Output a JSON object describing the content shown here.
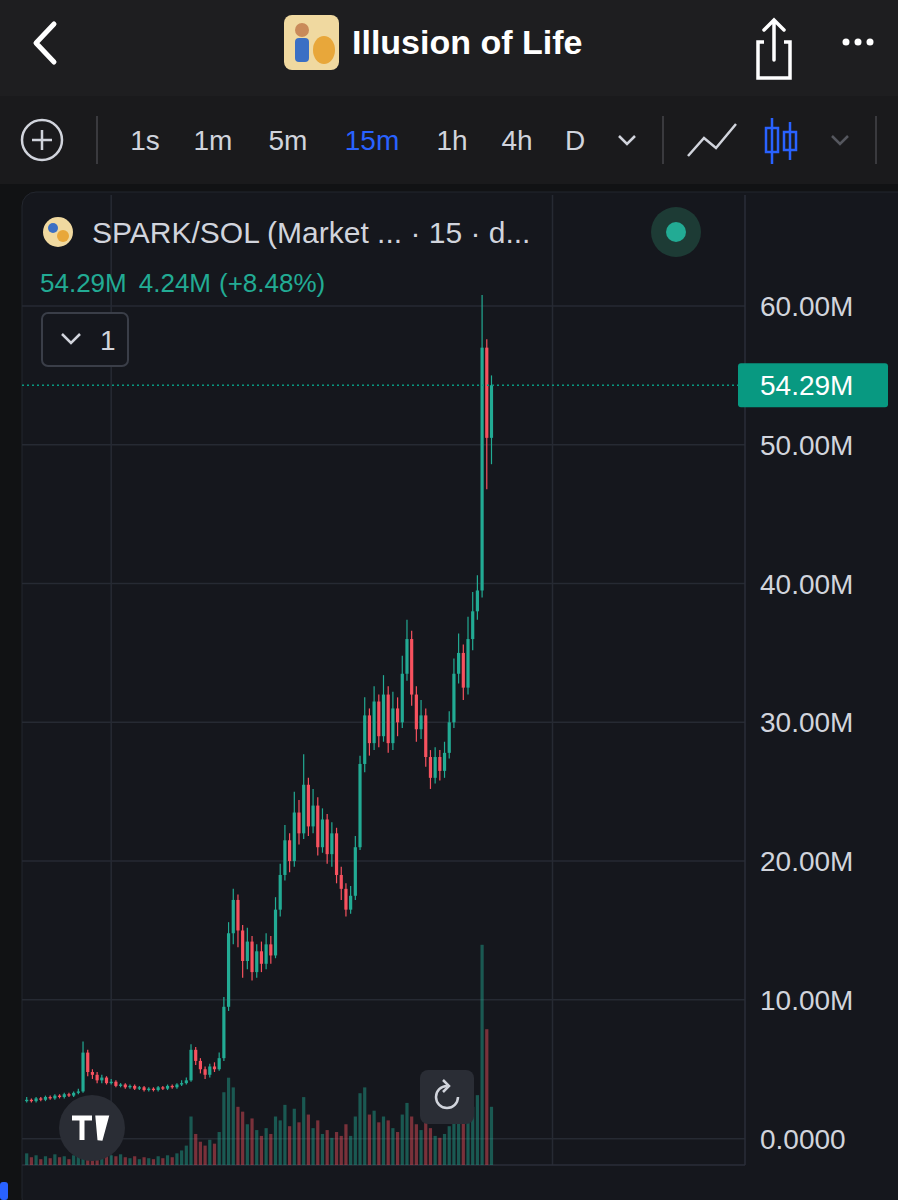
{
  "header": {
    "title": "Illusion of Life"
  },
  "toolbar": {
    "timeframes": [
      "1s",
      "1m",
      "5m",
      "15m",
      "1h",
      "4h",
      "D"
    ],
    "active": "15m"
  },
  "legend_badge": "1",
  "chart_data": {
    "type": "candlestick",
    "title": "SPARK/SOL (Market ... · 15 · d...",
    "last_price": {
      "value": 54.29,
      "label": "54.29M"
    },
    "change": "4.24M",
    "change_pct": "(+8.48%)",
    "x": [
      0,
      1,
      2,
      3,
      4,
      5,
      6,
      7,
      8,
      9,
      10,
      11,
      12,
      13,
      14,
      15,
      16,
      17,
      18,
      19,
      20,
      21,
      22,
      23,
      24,
      25,
      26,
      27,
      28,
      29,
      30,
      31,
      32,
      33,
      34,
      35,
      36,
      37,
      38,
      39,
      40,
      41,
      42,
      43,
      44,
      45,
      46,
      47,
      48,
      49,
      50,
      51,
      52,
      53,
      54,
      55,
      56,
      57,
      58,
      59,
      60,
      61,
      62,
      63,
      64,
      65,
      66,
      67,
      68,
      69,
      70,
      71,
      72,
      73,
      74,
      75,
      76,
      77,
      78,
      79,
      80,
      81,
      82,
      83,
      84,
      85,
      86,
      87,
      88,
      89,
      90,
      91,
      92,
      93,
      94,
      95,
      96,
      97,
      98,
      99
    ],
    "xlim": [
      -1,
      153
    ],
    "xticks": [
      18,
      112
    ],
    "ylim": [
      -1.9,
      68
    ],
    "yticks": [
      {
        "value": 0,
        "label": "0.0000"
      },
      {
        "value": 10,
        "label": "10.00M"
      },
      {
        "value": 20,
        "label": "20.00M"
      },
      {
        "value": 30,
        "label": "30.00M"
      },
      {
        "value": 40,
        "label": "40.00M"
      },
      {
        "value": 50,
        "label": "50.00M"
      },
      {
        "value": 60,
        "label": "60.00M"
      }
    ],
    "y2lim": [
      0,
      100
    ],
    "grid": true,
    "tick_labels": "y",
    "series": [
      {
        "type": "candlestick",
        "open": [
          2.7,
          2.8,
          2.7,
          2.9,
          2.8,
          3.0,
          2.9,
          3.1,
          3.0,
          3.2,
          3.1,
          3.3,
          3.4,
          6.2,
          4.8,
          4.6,
          4.2,
          4.4,
          4.0,
          4.1,
          3.8,
          3.9,
          3.7,
          3.8,
          3.6,
          3.7,
          3.5,
          3.6,
          3.5,
          3.7,
          3.6,
          3.8,
          3.7,
          3.9,
          4.0,
          4.2,
          6.4,
          5.6,
          5.0,
          4.6,
          5.2,
          5.0,
          5.8,
          9.5,
          14.8,
          17.2,
          15.0,
          12.8,
          14.2,
          12.0,
          13.5,
          12.6,
          14.0,
          13.2,
          16.5,
          19.0,
          21.5,
          20.0,
          23.5,
          22.0,
          25.5,
          22.5,
          24.0,
          21.0,
          23.0,
          20.5,
          22.0,
          19.0,
          18.0,
          16.5,
          17.5,
          21.0,
          27.0,
          30.5,
          28.5,
          31.5,
          29.0,
          32.0,
          28.5,
          31.0,
          30.0,
          33.5,
          36.0,
          32.0,
          29.5,
          30.5,
          27.5,
          26.0,
          27.5,
          26.5,
          27.8,
          30.0,
          33.5,
          35.0,
          32.5,
          36.0,
          38.0,
          39.5,
          57.0,
          50.5
        ],
        "high": [
          3.0,
          2.9,
          3.0,
          3.0,
          3.1,
          3.1,
          3.2,
          3.2,
          3.3,
          3.3,
          3.4,
          3.6,
          7.0,
          6.4,
          5.0,
          4.8,
          4.6,
          4.5,
          4.3,
          4.2,
          4.0,
          4.0,
          3.9,
          3.9,
          3.8,
          3.8,
          3.7,
          3.7,
          3.8,
          3.8,
          3.9,
          3.9,
          4.0,
          4.2,
          4.4,
          6.8,
          6.6,
          5.8,
          5.2,
          5.4,
          5.5,
          6.2,
          10.2,
          15.6,
          18.0,
          17.6,
          15.4,
          15.2,
          14.6,
          14.0,
          14.2,
          14.8,
          14.6,
          17.4,
          19.8,
          22.6,
          22.0,
          25.0,
          24.4,
          27.7,
          26.0,
          25.2,
          24.6,
          23.8,
          23.4,
          22.8,
          22.4,
          19.6,
          18.4,
          18.2,
          21.8,
          27.6,
          31.8,
          31.0,
          32.6,
          32.0,
          33.4,
          32.6,
          32.2,
          31.8,
          34.8,
          37.4,
          36.6,
          32.6,
          31.6,
          31.0,
          28.0,
          28.2,
          28.0,
          28.6,
          30.8,
          34.6,
          36.4,
          35.6,
          37.6,
          39.4,
          40.6,
          60.8,
          57.6,
          55.0
        ],
        "low": [
          2.6,
          2.6,
          2.6,
          2.7,
          2.7,
          2.8,
          2.8,
          2.9,
          2.9,
          3.0,
          3.0,
          3.2,
          3.3,
          4.5,
          4.3,
          4.0,
          4.0,
          3.9,
          3.9,
          3.7,
          3.7,
          3.6,
          3.6,
          3.5,
          3.5,
          3.4,
          3.4,
          3.4,
          3.4,
          3.5,
          3.5,
          3.6,
          3.6,
          3.8,
          3.9,
          4.1,
          5.3,
          4.7,
          4.3,
          4.4,
          4.8,
          4.9,
          5.6,
          9.2,
          14.0,
          13.8,
          11.6,
          12.2,
          11.4,
          11.6,
          12.0,
          12.2,
          12.6,
          13.0,
          16.0,
          18.6,
          19.2,
          19.6,
          21.2,
          21.6,
          21.8,
          22.0,
          20.4,
          20.6,
          19.8,
          19.6,
          18.4,
          17.2,
          16.0,
          16.2,
          17.2,
          20.8,
          26.4,
          27.6,
          28.0,
          28.2,
          28.6,
          27.8,
          28.0,
          29.0,
          29.6,
          33.0,
          31.2,
          28.6,
          28.8,
          26.8,
          25.2,
          25.6,
          25.8,
          26.0,
          27.4,
          29.6,
          32.8,
          31.6,
          32.0,
          35.2,
          37.4,
          39.0,
          46.8,
          48.6
        ],
        "close": [
          2.8,
          2.7,
          2.9,
          2.8,
          3.0,
          2.9,
          3.1,
          3.0,
          3.2,
          3.1,
          3.3,
          3.4,
          6.2,
          4.8,
          4.6,
          4.2,
          4.4,
          4.0,
          4.1,
          3.8,
          3.9,
          3.7,
          3.8,
          3.6,
          3.7,
          3.5,
          3.6,
          3.5,
          3.7,
          3.6,
          3.8,
          3.7,
          3.9,
          4.0,
          4.2,
          6.4,
          5.6,
          5.0,
          4.6,
          5.2,
          5.0,
          5.8,
          9.5,
          14.8,
          17.2,
          15.0,
          12.8,
          14.2,
          12.0,
          13.5,
          12.6,
          14.0,
          13.2,
          16.5,
          19.0,
          21.5,
          20.0,
          23.5,
          22.0,
          25.5,
          22.5,
          24.0,
          21.0,
          23.0,
          20.5,
          22.0,
          19.0,
          18.0,
          16.5,
          17.5,
          21.0,
          27.0,
          30.5,
          28.5,
          31.5,
          29.0,
          32.0,
          28.5,
          31.0,
          30.0,
          33.5,
          36.0,
          32.0,
          29.5,
          30.5,
          27.5,
          26.0,
          27.5,
          26.5,
          27.8,
          30.0,
          33.5,
          35.0,
          32.5,
          36.0,
          38.0,
          39.5,
          57.0,
          50.5,
          54.29
        ]
      },
      {
        "type": "bar",
        "axis": "y2",
        "values": [
          1.2,
          0.8,
          1.0,
          0.6,
          0.9,
          0.7,
          1.1,
          0.8,
          0.9,
          0.6,
          1.0,
          1.4,
          4.5,
          3.0,
          2.0,
          1.6,
          1.2,
          1.4,
          1.0,
          0.9,
          1.1,
          0.8,
          0.7,
          0.9,
          0.6,
          0.8,
          0.7,
          0.6,
          0.9,
          0.7,
          1.0,
          0.8,
          1.2,
          1.5,
          2.0,
          5.0,
          3.2,
          2.4,
          2.0,
          2.6,
          2.2,
          3.4,
          7.5,
          9.0,
          8.0,
          6.0,
          5.5,
          4.2,
          4.8,
          3.6,
          3.0,
          3.8,
          3.2,
          5.0,
          4.6,
          6.2,
          4.0,
          5.8,
          4.4,
          7.0,
          5.2,
          3.8,
          4.6,
          3.2,
          3.6,
          2.8,
          3.4,
          3.0,
          4.2,
          3.0,
          5.0,
          7.4,
          8.0,
          5.2,
          5.6,
          4.4,
          5.0,
          4.6,
          3.8,
          3.4,
          5.2,
          6.4,
          5.0,
          4.2,
          3.6,
          4.4,
          3.8,
          3.0,
          2.8,
          3.2,
          4.0,
          6.0,
          5.2,
          4.4,
          6.8,
          6.0,
          7.2,
          22.7,
          14.0,
          6.0
        ]
      }
    ]
  }
}
